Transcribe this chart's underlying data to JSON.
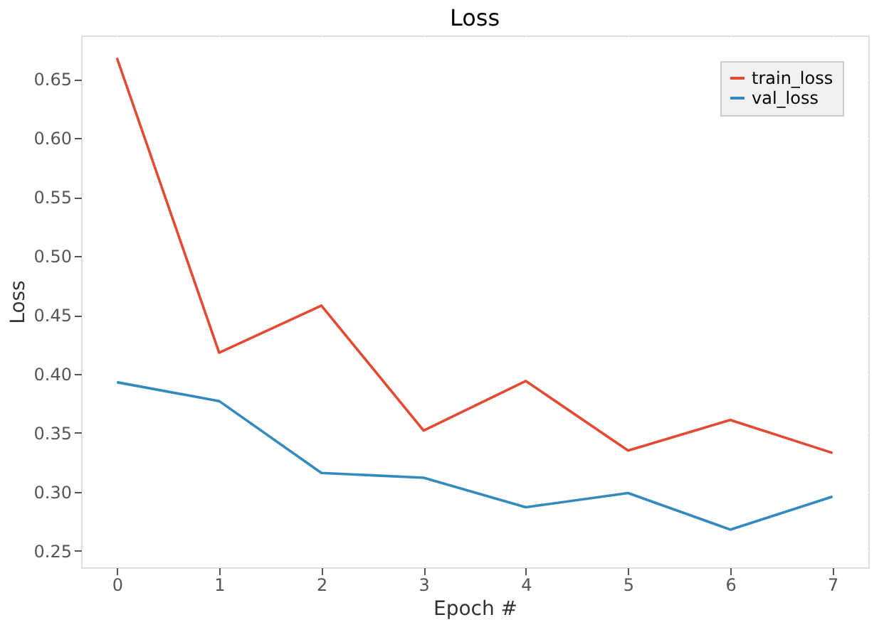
{
  "chart_data": {
    "type": "line",
    "title": "Loss",
    "xlabel": "Epoch #",
    "ylabel": "Loss",
    "x": [
      0,
      1,
      2,
      3,
      4,
      5,
      6,
      7
    ],
    "series": [
      {
        "name": "train_loss",
        "color": "#e24a33",
        "values": [
          0.668,
          0.418,
          0.458,
          0.352,
          0.394,
          0.335,
          0.361,
          0.333
        ]
      },
      {
        "name": "val_loss",
        "color": "#348abd",
        "values": [
          0.393,
          0.377,
          0.316,
          0.312,
          0.287,
          0.299,
          0.268,
          0.296
        ]
      }
    ],
    "xlim": [
      -0.35,
      7.35
    ],
    "ylim": [
      0.236,
      0.687
    ],
    "xticks": [
      0,
      1,
      2,
      3,
      4,
      5,
      6,
      7
    ],
    "yticks": [
      0.25,
      {
        "value": 0.3,
        "label": "0.30"
      },
      0.35,
      {
        "value": 0.4,
        "label": "0.40"
      },
      0.45,
      {
        "value": 0.5,
        "label": "0.50"
      },
      0.55,
      {
        "value": 0.6,
        "label": "0.60"
      },
      0.65
    ],
    "grid": true,
    "legend": "top right",
    "marker": "none",
    "line_style": "solid"
  }
}
